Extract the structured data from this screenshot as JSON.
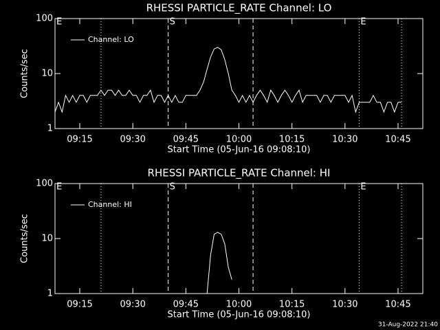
{
  "chart_data": [
    {
      "type": "line",
      "title": "RHESSI PARTICLE_RATE Channel: LO",
      "x_label": "Start Time (05-Jun-16 09:08:10)",
      "y_label": "Counts/sec",
      "log_y": true,
      "ylim": [
        1,
        100
      ],
      "yticks": [
        1,
        10,
        100
      ],
      "xlim": [
        "09:08",
        "10:52"
      ],
      "xticks": [
        "09:15",
        "09:30",
        "09:45",
        "10:00",
        "10:15",
        "10:30",
        "10:45"
      ],
      "legend": "top-left",
      "markers": [
        {
          "x": "09:21",
          "style": "dotted"
        },
        {
          "x": "09:40",
          "style": "dashed"
        },
        {
          "x": "10:04",
          "style": "dashed"
        },
        {
          "x": "10:34",
          "style": "dotted"
        },
        {
          "x": "10:46",
          "style": "dotted"
        }
      ],
      "flags": [
        {
          "x": "09:08",
          "label": "E"
        },
        {
          "x": "09:40",
          "label": "S"
        },
        {
          "x": "10:34",
          "label": "E"
        }
      ],
      "series": [
        {
          "name": "Channel: LO",
          "color": "#ffffff",
          "x": [
            "09:08",
            "09:09",
            "09:10",
            "09:11",
            "09:12",
            "09:13",
            "09:14",
            "09:15",
            "09:16",
            "09:17",
            "09:18",
            "09:19",
            "09:20",
            "09:21",
            "09:22",
            "09:23",
            "09:24",
            "09:25",
            "09:26",
            "09:27",
            "09:28",
            "09:29",
            "09:30",
            "09:31",
            "09:32",
            "09:33",
            "09:34",
            "09:35",
            "09:36",
            "09:37",
            "09:38",
            "09:39",
            "09:40",
            "09:41",
            "09:42",
            "09:43",
            "09:44",
            "09:45",
            "09:46",
            "09:47",
            "09:48",
            "09:49",
            "09:50",
            "09:51",
            "09:52",
            "09:53",
            "09:54",
            "09:55",
            "09:56",
            "09:57",
            "09:58",
            "09:59",
            "10:00",
            "10:01",
            "10:02",
            "10:03",
            "10:04",
            "10:05",
            "10:06",
            "10:07",
            "10:08",
            "10:09",
            "10:10",
            "10:11",
            "10:12",
            "10:13",
            "10:14",
            "10:15",
            "10:16",
            "10:17",
            "10:18",
            "10:19",
            "10:20",
            "10:21",
            "10:22",
            "10:23",
            "10:24",
            "10:25",
            "10:26",
            "10:27",
            "10:28",
            "10:29",
            "10:30",
            "10:31",
            "10:32",
            "10:33",
            "10:34",
            "10:35",
            "10:36",
            "10:37",
            "10:38",
            "10:39",
            "10:40",
            "10:41",
            "10:42",
            "10:43",
            "10:44",
            "10:45",
            "10:46"
          ],
          "values": [
            2,
            3,
            2,
            4,
            3,
            4,
            3,
            4,
            4,
            3,
            4,
            4,
            4,
            5,
            4,
            5,
            5,
            4,
            5,
            4,
            4,
            5,
            4,
            4,
            3,
            4,
            4,
            5,
            3,
            4,
            4,
            3,
            4,
            3,
            4,
            3,
            3,
            4,
            4,
            4,
            4,
            5,
            7,
            12,
            20,
            28,
            30,
            27,
            18,
            10,
            5,
            4,
            3,
            4,
            3,
            4,
            3,
            4,
            5,
            4,
            3,
            5,
            4,
            3,
            4,
            5,
            4,
            3,
            4,
            5,
            3,
            4,
            4,
            4,
            4,
            3,
            4,
            4,
            3,
            4,
            4,
            4,
            4,
            3,
            4,
            2,
            3,
            3,
            3,
            3,
            4,
            3,
            3,
            2,
            3,
            3,
            2,
            3,
            3
          ]
        }
      ]
    },
    {
      "type": "line",
      "title": "RHESSI PARTICLE_RATE Channel: HI",
      "x_label": "Start Time (05-Jun-16 09:08:10)",
      "y_label": "Counts/sec",
      "log_y": true,
      "ylim": [
        1,
        100
      ],
      "yticks": [
        1,
        10,
        100
      ],
      "xlim": [
        "09:08",
        "10:52"
      ],
      "xticks": [
        "09:15",
        "09:30",
        "09:45",
        "10:00",
        "10:15",
        "10:30",
        "10:45"
      ],
      "legend": "top-left",
      "markers": [
        {
          "x": "09:21",
          "style": "dotted"
        },
        {
          "x": "09:40",
          "style": "dashed"
        },
        {
          "x": "10:04",
          "style": "dashed"
        },
        {
          "x": "10:34",
          "style": "dotted"
        },
        {
          "x": "10:46",
          "style": "dotted"
        }
      ],
      "flags": [
        {
          "x": "09:08",
          "label": "E"
        },
        {
          "x": "09:40",
          "label": "S"
        },
        {
          "x": "10:34",
          "label": "E"
        }
      ],
      "series": [
        {
          "name": "Channel: HI",
          "color": "#ffffff",
          "x": [
            "09:51",
            "09:52",
            "09:53",
            "09:54",
            "09:55",
            "09:56",
            "09:57",
            "09:58"
          ],
          "values": [
            1,
            5,
            12,
            13,
            12,
            8,
            3,
            1.8
          ]
        }
      ]
    }
  ],
  "footer": "31-Aug-2022 21:40"
}
